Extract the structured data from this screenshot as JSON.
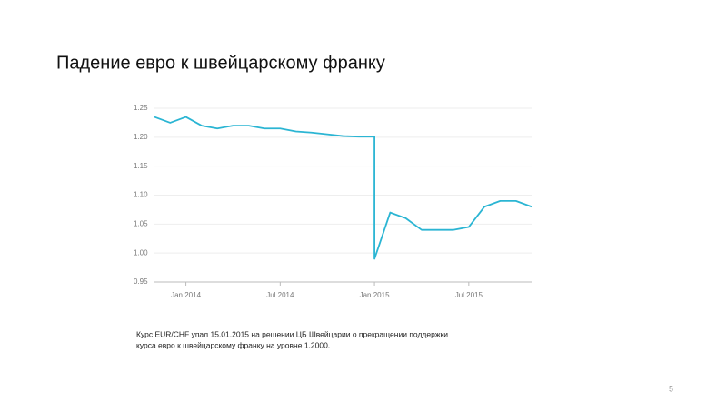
{
  "title": "Падение евро к швейцарскому франку",
  "chart_data": {
    "type": "line",
    "x": [
      "2013-11",
      "2013-12",
      "2014-01",
      "2014-02",
      "2014-03",
      "2014-04",
      "2014-05",
      "2014-06",
      "2014-07",
      "2014-08",
      "2014-09",
      "2014-10",
      "2014-11",
      "2014-12",
      "2015-01",
      "2015-01",
      "2015-02",
      "2015-03",
      "2015-04",
      "2015-05",
      "2015-06",
      "2015-07",
      "2015-08",
      "2015-09",
      "2015-10",
      "2015-11"
    ],
    "series": [
      {
        "name": "EUR/CHF",
        "color": "#2bb5d3",
        "values": [
          1.235,
          1.225,
          1.235,
          1.22,
          1.215,
          1.22,
          1.22,
          1.215,
          1.215,
          1.21,
          1.208,
          1.205,
          1.202,
          1.201,
          1.201,
          0.99,
          1.07,
          1.06,
          1.04,
          1.04,
          1.04,
          1.045,
          1.08,
          1.09,
          1.09,
          1.08
        ]
      }
    ],
    "xlim": [
      "2013-11",
      "2015-11"
    ],
    "xticks": [
      {
        "value": "2014-01",
        "label": "Jan 2014"
      },
      {
        "value": "2014-07",
        "label": "Jul 2014"
      },
      {
        "value": "2015-01",
        "label": "Jan 2015"
      },
      {
        "value": "2015-07",
        "label": "Jul 2015"
      }
    ],
    "ylim": [
      0.95,
      1.25
    ],
    "yticks": [
      0.95,
      {
        "value": 1.0,
        "label": "1.00"
      },
      1.05,
      {
        "value": 1.1,
        "label": "1.10"
      },
      1.15,
      {
        "value": 1.2,
        "label": "1.20"
      },
      1.25
    ],
    "grid": true
  },
  "caption": [
    "Курс EUR/CHF упал 15.01.2015 на решении ЦБ Швейцарии о прекращении поддержки",
    "курса евро к швейцарскому франку на уровне 1.2000."
  ],
  "page_number": "5"
}
